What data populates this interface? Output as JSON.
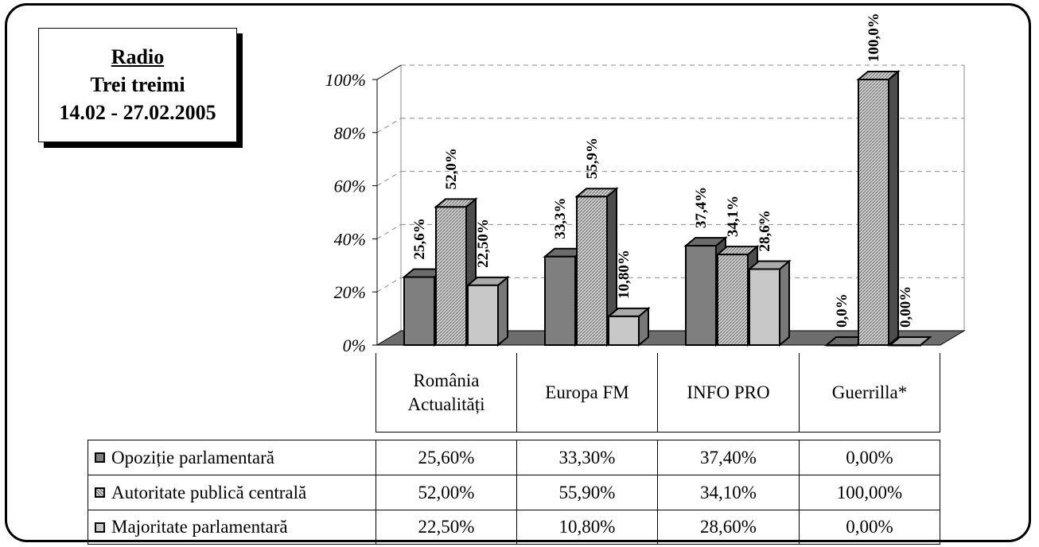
{
  "title_box": {
    "line1": "Radio",
    "line2": "Trei treimi",
    "line3": "14.02 - 27.02.2005"
  },
  "chart_data": {
    "type": "bar",
    "categories": [
      "România Actualități",
      "Europa FM",
      "INFO PRO",
      "Guerrilla*"
    ],
    "ylim": [
      0,
      100
    ],
    "y_ticks": [
      "0%",
      "20%",
      "40%",
      "60%",
      "80%",
      "100%"
    ],
    "grid": true,
    "legend": "data-table",
    "series": [
      {
        "name": "Opoziție parlamentară",
        "values": [
          25.6,
          33.3,
          37.4,
          0.0
        ],
        "labels": [
          "25,6%",
          "33,3%",
          "37,4%",
          "0,0%"
        ],
        "table": [
          "25,60%",
          "33,30%",
          "37,40%",
          "0,00%"
        ],
        "color": "#7f7f7f"
      },
      {
        "name": "Autoritate publică centrală",
        "values": [
          52.0,
          55.9,
          34.1,
          100.0
        ],
        "labels": [
          "52,0%",
          "55,9%",
          "34,1%",
          "100,0%"
        ],
        "table": [
          "52,00%",
          "55,90%",
          "34,10%",
          "100,00%"
        ],
        "color": "#b5b5b5"
      },
      {
        "name": "Majoritate parlamentară",
        "values": [
          22.5,
          10.8,
          28.6,
          0.0
        ],
        "labels": [
          "22,50%",
          "10,80%",
          "28,6%",
          "0,00%"
        ],
        "table": [
          "22,50%",
          "10,80%",
          "28,60%",
          "0,00%"
        ],
        "color": "#c8c8c8"
      }
    ]
  }
}
